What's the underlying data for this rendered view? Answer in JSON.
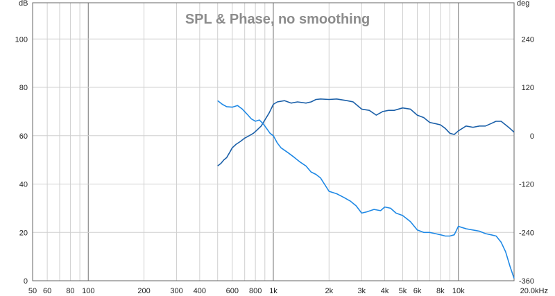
{
  "chart_data": {
    "type": "line",
    "title": "SPL & Phase, no smoothing",
    "xscale": "log",
    "xlim": [
      50,
      20000
    ],
    "x_ticks": [
      {
        "value": 50,
        "label": "50"
      },
      {
        "value": 60,
        "label": "60"
      },
      {
        "value": 80,
        "label": "80"
      },
      {
        "value": 100,
        "label": "100"
      },
      {
        "value": 200,
        "label": "200"
      },
      {
        "value": 300,
        "label": "300"
      },
      {
        "value": 400,
        "label": "400"
      },
      {
        "value": 600,
        "label": "600"
      },
      {
        "value": 800,
        "label": "800"
      },
      {
        "value": 1000,
        "label": "1k"
      },
      {
        "value": 2000,
        "label": "2k"
      },
      {
        "value": 3000,
        "label": "3k"
      },
      {
        "value": 4000,
        "label": "4k"
      },
      {
        "value": 5000,
        "label": "5k"
      },
      {
        "value": 6000,
        "label": "6k"
      },
      {
        "value": 8000,
        "label": "8k"
      },
      {
        "value": 10000,
        "label": "10k"
      },
      {
        "value": 20000,
        "label": "20.0kHz"
      }
    ],
    "y_left": {
      "unit": "dB",
      "lim": [
        0,
        115
      ],
      "ticks": [
        0,
        20,
        40,
        60,
        80,
        100
      ]
    },
    "y_right": {
      "unit": "deg",
      "lim": [
        -360,
        330
      ],
      "ticks": [
        -360,
        -240,
        -120,
        0,
        120,
        240
      ]
    },
    "grid": true,
    "series": [
      {
        "axis": "left",
        "color": "#1a5fa8",
        "points": [
          [
            500,
            47.5
          ],
          [
            520,
            48.5
          ],
          [
            540,
            50
          ],
          [
            560,
            51
          ],
          [
            580,
            53
          ],
          [
            600,
            55
          ],
          [
            630,
            56.5
          ],
          [
            660,
            57.5
          ],
          [
            700,
            59
          ],
          [
            740,
            60
          ],
          [
            780,
            61
          ],
          [
            820,
            62.5
          ],
          [
            860,
            64
          ],
          [
            900,
            66.5
          ],
          [
            950,
            69.5
          ],
          [
            1000,
            73
          ],
          [
            1050,
            74
          ],
          [
            1150,
            74.5
          ],
          [
            1250,
            73.5
          ],
          [
            1350,
            74
          ],
          [
            1500,
            73.5
          ],
          [
            1600,
            74
          ],
          [
            1700,
            75
          ],
          [
            1800,
            75.2
          ],
          [
            2000,
            75
          ],
          [
            2200,
            75.2
          ],
          [
            2500,
            74.5
          ],
          [
            2700,
            74
          ],
          [
            3000,
            71
          ],
          [
            3300,
            70.5
          ],
          [
            3600,
            68.5
          ],
          [
            3900,
            70
          ],
          [
            4200,
            70.5
          ],
          [
            4500,
            70.5
          ],
          [
            5000,
            71.5
          ],
          [
            5500,
            71
          ],
          [
            6000,
            68.5
          ],
          [
            6500,
            67.5
          ],
          [
            7000,
            65.5
          ],
          [
            7500,
            65
          ],
          [
            8000,
            64.5
          ],
          [
            8500,
            63
          ],
          [
            9000,
            61
          ],
          [
            9500,
            60.5
          ],
          [
            10000,
            62
          ],
          [
            11000,
            64
          ],
          [
            12000,
            63.5
          ],
          [
            13000,
            64
          ],
          [
            14000,
            64
          ],
          [
            15000,
            65
          ],
          [
            16000,
            66
          ],
          [
            17000,
            66
          ],
          [
            18000,
            64.5
          ],
          [
            19000,
            63
          ],
          [
            20000,
            61.5
          ]
        ]
      },
      {
        "axis": "left",
        "color": "#1e88e5",
        "points": [
          [
            500,
            74.5
          ],
          [
            530,
            73
          ],
          [
            560,
            72
          ],
          [
            600,
            71.8
          ],
          [
            640,
            72.5
          ],
          [
            680,
            71
          ],
          [
            720,
            69
          ],
          [
            760,
            67
          ],
          [
            800,
            66
          ],
          [
            840,
            66.5
          ],
          [
            880,
            65
          ],
          [
            920,
            63
          ],
          [
            960,
            61
          ],
          [
            1000,
            60
          ],
          [
            1050,
            57
          ],
          [
            1100,
            55
          ],
          [
            1200,
            53
          ],
          [
            1300,
            51
          ],
          [
            1400,
            49
          ],
          [
            1500,
            47.5
          ],
          [
            1600,
            45
          ],
          [
            1700,
            44
          ],
          [
            1800,
            42.5
          ],
          [
            2000,
            37
          ],
          [
            2200,
            36
          ],
          [
            2400,
            34.5
          ],
          [
            2600,
            33
          ],
          [
            2800,
            31
          ],
          [
            3000,
            28
          ],
          [
            3200,
            28.5
          ],
          [
            3500,
            29.5
          ],
          [
            3800,
            29
          ],
          [
            4000,
            30.5
          ],
          [
            4300,
            30
          ],
          [
            4600,
            28
          ],
          [
            5000,
            27
          ],
          [
            5500,
            24.5
          ],
          [
            6000,
            21
          ],
          [
            6500,
            20
          ],
          [
            7000,
            20
          ],
          [
            7500,
            19.5
          ],
          [
            8000,
            19
          ],
          [
            8500,
            18.5
          ],
          [
            9000,
            18.5
          ],
          [
            9500,
            19
          ],
          [
            10000,
            22.5
          ],
          [
            10500,
            22
          ],
          [
            11000,
            21.5
          ],
          [
            12000,
            21
          ],
          [
            13000,
            20.5
          ],
          [
            14000,
            19.5
          ],
          [
            15000,
            19
          ],
          [
            16000,
            18.5
          ],
          [
            17000,
            16
          ],
          [
            18000,
            12
          ],
          [
            19000,
            6
          ],
          [
            20000,
            1
          ]
        ]
      }
    ]
  }
}
